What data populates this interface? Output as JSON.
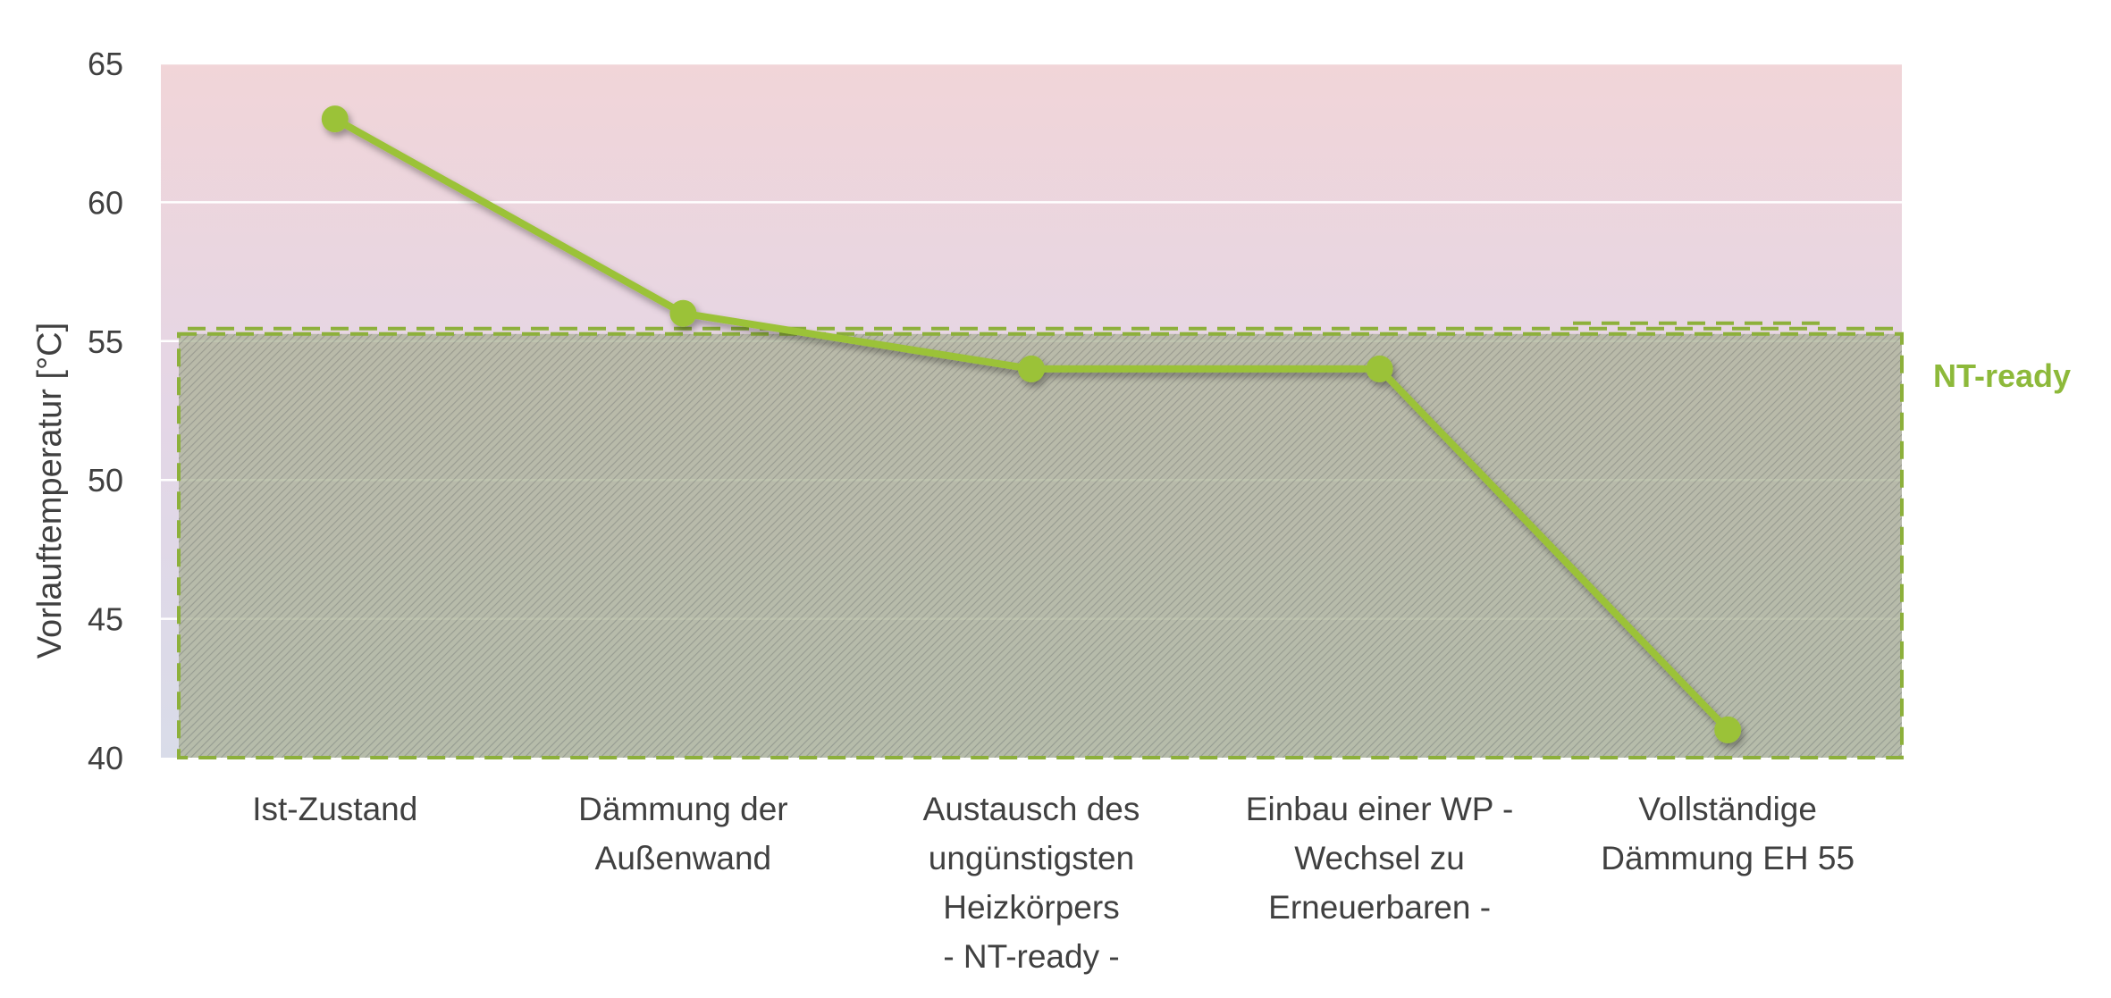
{
  "chart_data": {
    "type": "line",
    "categories": [
      [
        "Ist-Zustand"
      ],
      [
        "Dämmung der",
        "Außenwand"
      ],
      [
        "Austausch des",
        "ungünstigsten",
        "Heizkörpers",
        "- NT-ready -"
      ],
      [
        "Einbau einer WP -",
        "Wechsel zu",
        "Erneuerbaren -"
      ],
      [
        "Vollständige",
        "Dämmung EH 55"
      ]
    ],
    "values": [
      63,
      56,
      54,
      54,
      41
    ],
    "ylabel": "Vorlauftemperatur [°C]",
    "xlabel": "",
    "ylim": [
      40,
      65
    ],
    "yticks": [
      40,
      45,
      50,
      55,
      60,
      65
    ],
    "grid": true,
    "zone": {
      "label": "NT-ready",
      "from": 40,
      "to": 55
    },
    "colors": {
      "line": "#9BC237",
      "zone_border": "#8DB03B",
      "zone_label": "#8DB93A",
      "grid": "#ffffff",
      "text": "#404040",
      "bg_top": "#F1D5D8",
      "bg_bottom": "#D9DCE9",
      "hatch": "#7C8A6D"
    }
  }
}
